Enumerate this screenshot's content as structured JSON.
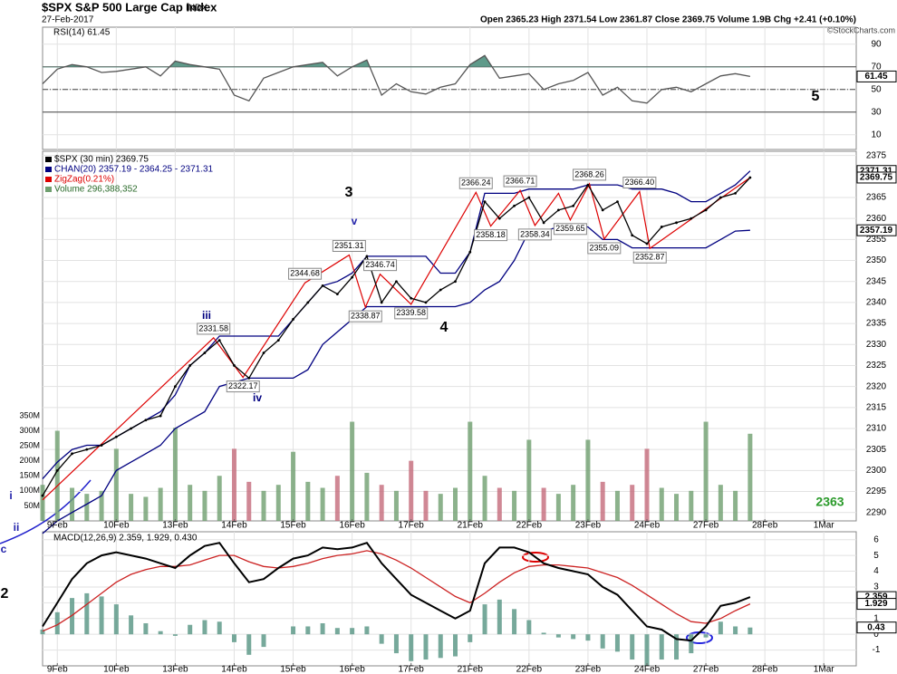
{
  "header": {
    "title": "$SPX S&P 500 Large Cap Index",
    "exchange": "INDX",
    "date": "27-Feb-2017",
    "quote": "Open 2365.23   High 2371.54   Low 2361.87   Close 2369.75   Volume 1.9B   Chg +2.41 (+0.10%)",
    "credit": "©StockCharts.com"
  },
  "annotations": [
    "3",
    "v",
    "iii",
    "iv",
    "4",
    "5",
    "i",
    "ii",
    "c",
    "2",
    "2363"
  ],
  "chart_data": [
    {
      "type": "line",
      "title": "RSI(14) 61.45",
      "xlim": [
        0,
        55.2
      ],
      "ylim": [
        -3,
        105
      ],
      "yticks": [
        90,
        70,
        50,
        30,
        10
      ],
      "levels": [
        70,
        50,
        30
      ],
      "series": [
        {
          "name": "RSI(14)",
          "color": "#555555",
          "fill": "#5f9a8a",
          "values": [
            55,
            68,
            72,
            70,
            65,
            66,
            68,
            70,
            62,
            75,
            72,
            70,
            68,
            45,
            40,
            60,
            65,
            70,
            72,
            74,
            62,
            70,
            76,
            45,
            55,
            48,
            46,
            52,
            55,
            72,
            80,
            60,
            62,
            64,
            50,
            55,
            58,
            65,
            45,
            52,
            40,
            38,
            50,
            52,
            48,
            55,
            62,
            64,
            61.45
          ]
        }
      ]
    },
    {
      "type": "line",
      "xlim": [
        0,
        55.2
      ],
      "ylim": [
        2288,
        2376
      ],
      "yticks": [
        2375,
        2365,
        2360,
        2355,
        2350,
        2345,
        2340,
        2335,
        2330,
        2325,
        2320,
        2315,
        2310,
        2305,
        2300,
        2295,
        2290
      ],
      "y2lim": [
        0,
        1230
      ],
      "y2ticks": [
        {
          "value": 50,
          "label": "50M"
        },
        {
          "value": 100,
          "label": "100M"
        },
        {
          "value": 150,
          "label": "150M"
        },
        {
          "value": 200,
          "label": "200M"
        },
        {
          "value": 250,
          "label": "250M"
        },
        {
          "value": 300,
          "label": "300M"
        },
        {
          "value": 350,
          "label": "350M"
        }
      ],
      "xticks": [
        {
          "value": 1,
          "label": "9Feb"
        },
        {
          "value": 5,
          "label": "10Feb"
        },
        {
          "value": 9,
          "label": "13Feb"
        },
        {
          "value": 13,
          "label": "14Feb"
        },
        {
          "value": 17,
          "label": "15Feb"
        },
        {
          "value": 21,
          "label": "16Feb"
        },
        {
          "value": 25,
          "label": "17Feb"
        },
        {
          "value": 29,
          "label": "21Feb"
        },
        {
          "value": 33,
          "label": "22Feb"
        },
        {
          "value": 37,
          "label": "23Feb"
        },
        {
          "value": 41,
          "label": "24Feb"
        },
        {
          "value": 45,
          "label": "27Feb"
        },
        {
          "value": 49,
          "label": "28Feb"
        },
        {
          "value": 53,
          "label": "1Mar"
        }
      ],
      "series": [
        {
          "name": "$SPX (30 min) 2369.75",
          "color": "#000000",
          "values": [
            2294,
            2300,
            2304,
            2305,
            2306,
            2308,
            2310,
            2312,
            2313,
            2320,
            2325,
            2328,
            2331,
            2325,
            2322,
            2328,
            2331,
            2336,
            2340,
            2344,
            2342,
            2346,
            2351,
            2340,
            2345,
            2341,
            2340,
            2343,
            2345,
            2352,
            2364,
            2360,
            2363,
            2365,
            2359,
            2362,
            2363,
            2368,
            2362,
            2364,
            2356,
            2354,
            2358,
            2359,
            2360,
            2362,
            2365,
            2366,
            2369.75
          ]
        },
        {
          "name": "CHAN(20) 2357.19 - 2364.25 - 2371.31",
          "color": "#000080",
          "upper": [
            2298,
            2302,
            2305,
            2306,
            2306,
            2308,
            2310,
            2312,
            2314,
            2318,
            2325,
            2328,
            2332,
            2332,
            2332,
            2332,
            2332,
            2336,
            2340,
            2344,
            2345,
            2347,
            2351,
            2351,
            2351,
            2351,
            2351,
            2347,
            2347,
            2352,
            2366,
            2366,
            2366,
            2367,
            2367,
            2367,
            2367,
            2368,
            2368,
            2368,
            2367,
            2367,
            2367,
            2366,
            2364,
            2364,
            2366,
            2368,
            2371.31
          ],
          "lower": [
            2285,
            2288,
            2290,
            2292,
            2294,
            2300,
            2302,
            2304,
            2306,
            2310,
            2312,
            2314,
            2320,
            2321,
            2322,
            2322,
            2322,
            2322,
            2324,
            2330,
            2333,
            2336,
            2339,
            2339,
            2339,
            2339,
            2339,
            2339,
            2339,
            2340,
            2343,
            2345,
            2350,
            2357,
            2357,
            2358,
            2358,
            2358,
            2355,
            2355,
            2353,
            2353,
            2353,
            2353,
            2353,
            2353,
            2355,
            2357,
            2357.19
          ]
        },
        {
          "name": "ZigZag(0.21%)",
          "color": "#dd0000",
          "x": [
            0,
            11.6,
            13.6,
            17.8,
            20.8,
            21.9,
            22.9,
            25,
            29.4,
            30.4,
            32.4,
            33.4,
            35,
            35.8,
            37.1,
            38.1,
            40.5,
            41.2,
            48
          ],
          "values": [
            2293,
            2331.58,
            2322.17,
            2344.68,
            2351.31,
            2338.87,
            2346.74,
            2339.58,
            2366.24,
            2358.18,
            2366.71,
            2358.34,
            2366,
            2359.65,
            2368.26,
            2355.09,
            2366.4,
            2352.87,
            2369.75
          ],
          "value_labels": [
            null,
            "2331.58",
            "2322.17",
            "2344.68",
            "2351.31",
            "2338.87",
            "2346.74",
            "2339.58",
            "2366.24",
            "2358.18",
            "2366.71",
            "2358.34",
            null,
            "2359.65",
            "2368.26",
            "2355.09",
            "2366.40",
            "2352.87",
            null
          ]
        },
        {
          "name": "Volume 296,388,352",
          "axis": "y2",
          "color_up": "#6f9f6f",
          "color_down": "#c46a7a",
          "values": [
            120,
            300,
            110,
            90,
            100,
            240,
            90,
            80,
            110,
            310,
            120,
            100,
            150,
            240,
            130,
            100,
            120,
            230,
            130,
            110,
            150,
            330,
            160,
            120,
            100,
            200,
            100,
            90,
            110,
            330,
            150,
            110,
            100,
            270,
            110,
            90,
            120,
            270,
            130,
            100,
            120,
            240,
            110,
            90,
            100,
            330,
            120,
            100,
            290
          ]
        }
      ]
    },
    {
      "type": "line",
      "title": "MACD(12,26,9) 2.359, 1.929, 0.430",
      "xlim": [
        0,
        55.2
      ],
      "ylim": [
        -2,
        6.5
      ],
      "yticks": [
        6,
        5,
        4,
        3,
        2,
        1,
        0,
        -1
      ],
      "xticks": [
        {
          "value": 1,
          "label": "9Feb"
        },
        {
          "value": 5,
          "label": "10Feb"
        },
        {
          "value": 9,
          "label": "13Feb"
        },
        {
          "value": 13,
          "label": "14Feb"
        },
        {
          "value": 17,
          "label": "15Feb"
        },
        {
          "value": 21,
          "label": "16Feb"
        },
        {
          "value": 25,
          "label": "17Feb"
        },
        {
          "value": 29,
          "label": "21Feb"
        },
        {
          "value": 33,
          "label": "22Feb"
        },
        {
          "value": 37,
          "label": "23Feb"
        },
        {
          "value": 41,
          "label": "24Feb"
        },
        {
          "value": 45,
          "label": "27Feb"
        },
        {
          "value": 49,
          "label": "28Feb"
        },
        {
          "value": 53,
          "label": "1Mar"
        }
      ],
      "series": [
        {
          "color": "#000000",
          "values": [
            0.5,
            2,
            3.5,
            4.5,
            5,
            5.2,
            5,
            4.8,
            4.5,
            4.2,
            5,
            5.6,
            5.8,
            4.5,
            3.3,
            3.5,
            4.2,
            4.8,
            5,
            5.5,
            5.4,
            5.5,
            5.8,
            4.5,
            3.5,
            2.5,
            2,
            1.5,
            1,
            1.5,
            4.5,
            5.5,
            5.5,
            5.2,
            4.5,
            4.2,
            4,
            3.8,
            3,
            2.5,
            1.5,
            0.5,
            0.3,
            -0.3,
            -0.4,
            0.5,
            1.8,
            2.0,
            2.359
          ]
        },
        {
          "color": "#cc2222",
          "values": [
            0.2,
            0.6,
            1.2,
            1.9,
            2.6,
            3.3,
            3.8,
            4.1,
            4.3,
            4.3,
            4.4,
            4.7,
            5.0,
            5.0,
            4.6,
            4.3,
            4.2,
            4.3,
            4.5,
            4.8,
            5.0,
            5.1,
            5.3,
            5.1,
            4.7,
            4.2,
            3.6,
            3.0,
            2.4,
            2.0,
            2.6,
            3.3,
            3.9,
            4.3,
            4.4,
            4.4,
            4.3,
            4.2,
            3.9,
            3.6,
            3.1,
            2.5,
            1.9,
            1.3,
            0.8,
            0.7,
            1.0,
            1.5,
            1.929
          ]
        },
        {
          "type": "histogram",
          "color": "#5f9a8a",
          "values": [
            0.3,
            1.4,
            2.3,
            2.6,
            2.4,
            1.9,
            1.2,
            0.7,
            0.2,
            -0.1,
            0.6,
            0.9,
            0.8,
            -0.5,
            -1.3,
            -0.8,
            0,
            0.5,
            0.5,
            0.7,
            0.4,
            0.4,
            0.5,
            -0.6,
            -1.2,
            -1.7,
            -1.6,
            -1.5,
            -1.4,
            -0.5,
            1.9,
            2.2,
            1.6,
            0.9,
            0.1,
            -0.2,
            -0.3,
            -0.4,
            -0.9,
            -1.1,
            -1.6,
            -2.0,
            -1.6,
            -1.6,
            -1.2,
            -0.2,
            0.8,
            0.5,
            0.43
          ]
        }
      ]
    }
  ]
}
